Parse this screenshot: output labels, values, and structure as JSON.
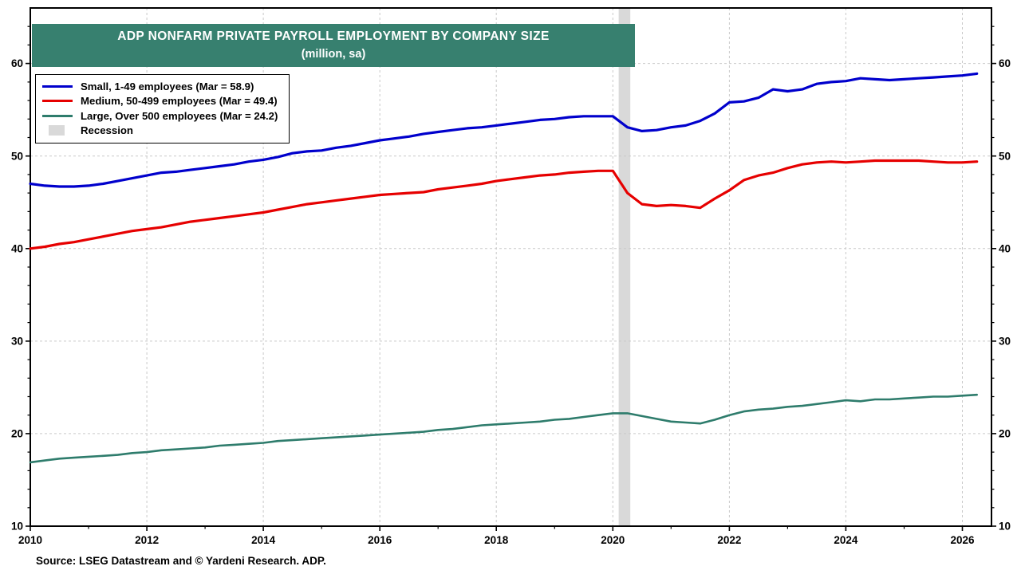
{
  "title": {
    "line1": "ADP NONFARM PRIVATE PAYROLL EMPLOYMENT BY COMPANY SIZE",
    "line2": "(million, sa)"
  },
  "source": "Source: LSEG Datastream and © Yardeni Research. ADP.",
  "colors": {
    "small": "#0000cc",
    "medium": "#e60000",
    "large": "#2e7c6c",
    "recession": "#d9d9d9",
    "title_bg": "#37806f",
    "grid": "#c9c9c9",
    "frame": "#000000"
  },
  "legend": [
    {
      "label": "Small, 1-49 employees (Mar = 58.9)",
      "color": "#0000cc",
      "swatch": "line"
    },
    {
      "label": "Medium, 50-499 employees (Mar = 49.4)",
      "color": "#e60000",
      "swatch": "line"
    },
    {
      "label": "Large, Over 500 employees (Mar = 24.2)",
      "color": "#2e7c6c",
      "swatch": "line"
    },
    {
      "label": "Recession",
      "color": "#d9d9d9",
      "swatch": "band"
    }
  ],
  "chart_data": {
    "type": "line",
    "title": "ADP NONFARM PRIVATE PAYROLL EMPLOYMENT BY COMPANY SIZE",
    "subtitle": "(million, sa)",
    "xlim": [
      2010,
      2026.5
    ],
    "ylim": [
      10,
      66
    ],
    "x_ticks_major": [
      2010,
      2012,
      2014,
      2016,
      2018,
      2020,
      2022,
      2024,
      2026
    ],
    "x_ticks_minor": [
      2011,
      2013,
      2015,
      2017,
      2019,
      2021,
      2023,
      2025
    ],
    "y_ticks_major": [
      10,
      20,
      30,
      40,
      50,
      60
    ],
    "y_ticks_minor": [
      12,
      14,
      16,
      18,
      22,
      24,
      26,
      28,
      32,
      34,
      36,
      38,
      42,
      44,
      46,
      48,
      52,
      54,
      56,
      58,
      62,
      64
    ],
    "grid": "dashed",
    "legend_position": "top-left",
    "recession_bands": [
      [
        2020.1,
        2020.3
      ]
    ],
    "x_start": 2010,
    "x_step": 0.25,
    "series": [
      {
        "id": "small",
        "name": "Small, 1-49 employees",
        "latest_label": "Mar = 58.9",
        "color": "#0000cc",
        "width": 3.2,
        "values": [
          47.0,
          46.8,
          46.7,
          46.7,
          46.8,
          47.0,
          47.3,
          47.6,
          47.9,
          48.2,
          48.3,
          48.5,
          48.7,
          48.9,
          49.1,
          49.4,
          49.6,
          49.9,
          50.3,
          50.5,
          50.6,
          50.9,
          51.1,
          51.4,
          51.7,
          51.9,
          52.1,
          52.4,
          52.6,
          52.8,
          53.0,
          53.1,
          53.3,
          53.5,
          53.7,
          53.9,
          54.0,
          54.2,
          54.3,
          54.3,
          54.3,
          53.1,
          52.7,
          52.8,
          53.1,
          53.3,
          53.8,
          54.6,
          55.8,
          55.9,
          56.3,
          57.2,
          57.0,
          57.2,
          57.8,
          58.0,
          58.1,
          58.4,
          58.3,
          58.2,
          58.3,
          58.4,
          58.5,
          58.6,
          58.7,
          58.9
        ]
      },
      {
        "id": "medium",
        "name": "Medium, 50-499 employees",
        "latest_label": "Mar = 49.4",
        "color": "#e60000",
        "width": 3.2,
        "values": [
          40.0,
          40.2,
          40.5,
          40.7,
          41.0,
          41.3,
          41.6,
          41.9,
          42.1,
          42.3,
          42.6,
          42.9,
          43.1,
          43.3,
          43.5,
          43.7,
          43.9,
          44.2,
          44.5,
          44.8,
          45.0,
          45.2,
          45.4,
          45.6,
          45.8,
          45.9,
          46.0,
          46.1,
          46.4,
          46.6,
          46.8,
          47.0,
          47.3,
          47.5,
          47.7,
          47.9,
          48.0,
          48.2,
          48.3,
          48.4,
          48.4,
          46.0,
          44.8,
          44.6,
          44.7,
          44.6,
          44.4,
          45.4,
          46.3,
          47.4,
          47.9,
          48.2,
          48.7,
          49.1,
          49.3,
          49.4,
          49.3,
          49.4,
          49.5,
          49.5,
          49.5,
          49.5,
          49.4,
          49.3,
          49.3,
          49.4
        ]
      },
      {
        "id": "large",
        "name": "Large, Over 500 employees",
        "latest_label": "Mar = 24.2",
        "color": "#2e7c6c",
        "width": 2.6,
        "values": [
          16.9,
          17.1,
          17.3,
          17.4,
          17.5,
          17.6,
          17.7,
          17.9,
          18.0,
          18.2,
          18.3,
          18.4,
          18.5,
          18.7,
          18.8,
          18.9,
          19.0,
          19.2,
          19.3,
          19.4,
          19.5,
          19.6,
          19.7,
          19.8,
          19.9,
          20.0,
          20.1,
          20.2,
          20.4,
          20.5,
          20.7,
          20.9,
          21.0,
          21.1,
          21.2,
          21.3,
          21.5,
          21.6,
          21.8,
          22.0,
          22.2,
          22.2,
          21.9,
          21.6,
          21.3,
          21.2,
          21.1,
          21.5,
          22.0,
          22.4,
          22.6,
          22.7,
          22.9,
          23.0,
          23.2,
          23.4,
          23.6,
          23.5,
          23.7,
          23.7,
          23.8,
          23.9,
          24.0,
          24.0,
          24.1,
          24.2
        ]
      }
    ]
  }
}
